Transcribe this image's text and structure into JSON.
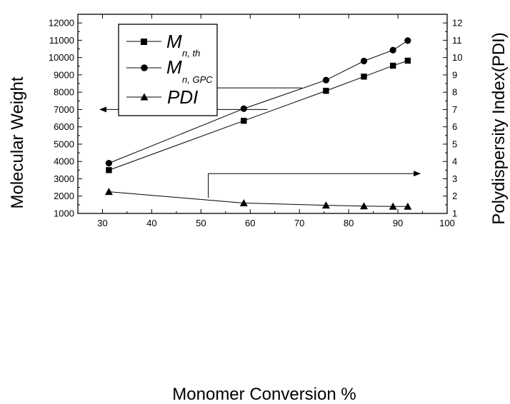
{
  "chart_data": {
    "type": "line",
    "xlabel": "Monomer Conversion %",
    "ylabel": "Molecular Weight",
    "y2label": "Polydispersity Index(PDI)",
    "xlim": [
      25,
      100
    ],
    "ylim": [
      1000,
      12500
    ],
    "y2lim": [
      1,
      12.5
    ],
    "xticks": [
      "30",
      "40",
      "50",
      "60",
      "70",
      "80",
      "90",
      "100"
    ],
    "yticks": [
      "1000",
      "2000",
      "3000",
      "4000",
      "5000",
      "6000",
      "7000",
      "8000",
      "9000",
      "10000",
      "11000",
      "12000"
    ],
    "y2ticks": [
      "1",
      "2",
      "3",
      "4",
      "5",
      "6",
      "7",
      "8",
      "9",
      "10",
      "11",
      "12"
    ],
    "grid": false,
    "legend_position": "top-left",
    "series": [
      {
        "name": "M",
        "subscript": "n, th",
        "axis": "left",
        "marker": "square",
        "x": [
          31.3,
          58.7,
          75.4,
          83.1,
          89.0,
          92.0
        ],
        "y": [
          3500,
          6350,
          8080,
          8900,
          9530,
          9820
        ]
      },
      {
        "name": "M",
        "subscript": "n, GPC",
        "axis": "left",
        "marker": "circle",
        "x": [
          31.3,
          58.7,
          75.4,
          83.1,
          89.0,
          92.0
        ],
        "y": [
          3900,
          7050,
          8700,
          9800,
          10430,
          10980
        ]
      },
      {
        "name": "PDI",
        "axis": "right",
        "marker": "triangle",
        "x": [
          31.3,
          58.7,
          75.4,
          83.1,
          89.0,
          92.0
        ],
        "y": [
          2.25,
          1.6,
          1.47,
          1.42,
          1.4,
          1.4
        ]
      }
    ],
    "annotations": [
      {
        "type": "arrow",
        "direction": "left",
        "axis": "left",
        "from": [
          70.5,
          8250
        ],
        "to": [
          38.5,
          8250
        ]
      },
      {
        "type": "arrow",
        "direction": "left",
        "axis": "left",
        "from": [
          63.5,
          7000
        ],
        "to": [
          29.5,
          7000
        ]
      },
      {
        "type": "bracket-arrow",
        "direction": "right",
        "axis": "right",
        "from": [
          51.5,
          1.9
        ],
        "corner": [
          51.5,
          3.3
        ],
        "to": [
          94.5,
          3.3
        ]
      }
    ]
  }
}
